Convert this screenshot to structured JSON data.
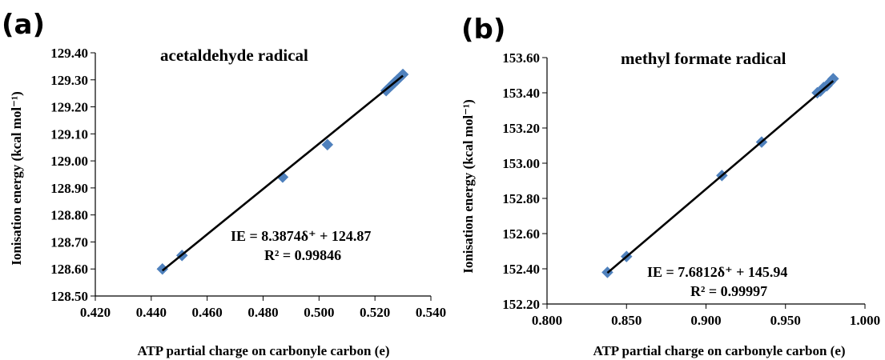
{
  "chart_data": [
    {
      "type": "scatter",
      "panel_label": "(a)",
      "title": "acetaldehyde radical",
      "xlabel": "ATP partial charge on carbonyle carbon (e)",
      "ylabel": "Ionisation energy (kcal mol⁻¹)",
      "xlim": [
        0.42,
        0.54
      ],
      "ylim": [
        128.5,
        129.4
      ],
      "xticks": [
        "0.420",
        "0.440",
        "0.460",
        "0.480",
        "0.500",
        "0.520",
        "0.540"
      ],
      "yticks": [
        "128.50",
        "128.60",
        "128.70",
        "128.80",
        "128.90",
        "129.00",
        "129.10",
        "129.20",
        "129.30",
        "129.40"
      ],
      "grid": false,
      "marker_color": "#4f81bd",
      "line_color": "#000000",
      "series": [
        {
          "points": [
            [
              0.444,
              128.6
            ],
            [
              0.451,
              128.65
            ],
            [
              0.487,
              128.94
            ],
            [
              0.503,
              129.06
            ],
            [
              0.524,
              129.26
            ],
            [
              0.525,
              129.27
            ],
            [
              0.526,
              129.28
            ],
            [
              0.527,
              129.29
            ],
            [
              0.528,
              129.3
            ],
            [
              0.529,
              129.31
            ],
            [
              0.53,
              129.32
            ]
          ]
        }
      ],
      "trendline": {
        "slope": 8.3874,
        "intercept": 124.87,
        "x_range": [
          0.444,
          0.53
        ]
      },
      "equation_line1": "IE = 8.3874δ⁺ + 124.87",
      "equation_line2": "R² = 0.99846"
    },
    {
      "type": "scatter",
      "panel_label": "(b)",
      "title": "methyl formate radical",
      "xlabel": "ATP partial charge on carbonyle carbon (e)",
      "ylabel": "Ionisation energy (kcal mol⁻¹)",
      "xlim": [
        0.8,
        1.0
      ],
      "ylim": [
        152.2,
        153.6
      ],
      "xticks": [
        "0.800",
        "0.850",
        "0.900",
        "0.950",
        "1.000"
      ],
      "yticks": [
        "152.20",
        "152.40",
        "152.60",
        "152.80",
        "153.00",
        "153.20",
        "153.40",
        "153.60"
      ],
      "grid": false,
      "marker_color": "#4f81bd",
      "line_color": "#000000",
      "series": [
        {
          "points": [
            [
              0.838,
              152.38
            ],
            [
              0.85,
              152.47
            ],
            [
              0.91,
              152.93
            ],
            [
              0.935,
              153.12
            ],
            [
              0.97,
              153.4
            ],
            [
              0.972,
              153.41
            ],
            [
              0.974,
              153.43
            ],
            [
              0.976,
              153.44
            ],
            [
              0.978,
              153.46
            ],
            [
              0.98,
              153.48
            ]
          ]
        }
      ],
      "trendline": {
        "slope": 7.6812,
        "intercept": 145.94,
        "x_range": [
          0.838,
          0.98
        ]
      },
      "equation_line1": "IE = 7.6812δ⁺  + 145.94",
      "equation_line2": "R² = 0.99997"
    }
  ]
}
